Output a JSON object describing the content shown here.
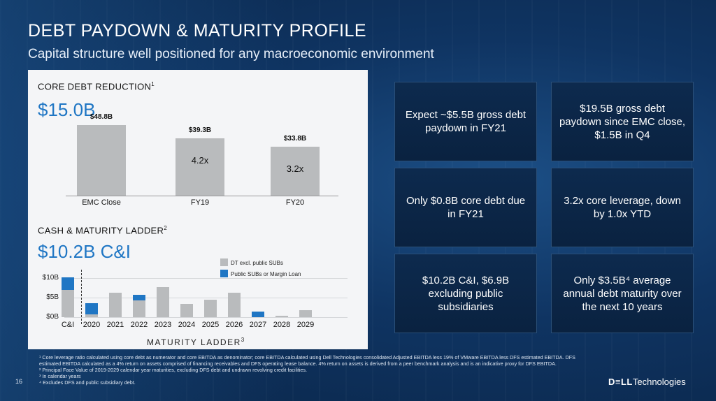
{
  "slide": {
    "title": "DEBT PAYDOWN & MATURITY PROFILE",
    "subtitle": "Capital structure well positioned for any macroeconomic environment",
    "page_number": "16",
    "logo": {
      "bold": "D≡LL",
      "rest": "Technologies"
    }
  },
  "core_debt": {
    "title": "CORE DEBT REDUCTION",
    "title_sup": "1",
    "headline": "$15.0B"
  },
  "ladder": {
    "title": "CASH & MATURITY LADDER",
    "title_sup": "2",
    "headline": "$10.2B C&I",
    "x_title": "MATURITY LADDER",
    "x_title_sup": "3"
  },
  "chart_data": [
    {
      "type": "bar",
      "categories": [
        "EMC Close",
        "FY19",
        "FY20"
      ],
      "values": [
        48.8,
        39.3,
        33.8
      ],
      "data_labels": [
        "$48.8B",
        "$39.3B",
        "$33.8B"
      ],
      "inner_labels": [
        "",
        "4.2x",
        "3.2x"
      ],
      "ylim": [
        0,
        55
      ],
      "colors": [
        "#b9bbbd"
      ]
    },
    {
      "type": "bar",
      "stacked": true,
      "categories": [
        "C&I",
        "2020",
        "2021",
        "2022",
        "2023",
        "2024",
        "2025",
        "2026",
        "2027",
        "2028",
        "2029"
      ],
      "yticks": [
        "$0B",
        "$5B",
        "$10B"
      ],
      "ylim": [
        0,
        10.5
      ],
      "series": [
        {
          "name": "DT excl. public SUBs",
          "color": "#b9bbbd",
          "values": [
            6.9,
            0.7,
            6.2,
            4.2,
            7.7,
            3.4,
            4.5,
            6.2,
            0.0,
            0.3,
            1.8
          ]
        },
        {
          "name": "Public SUBs or Margin Loan",
          "color": "#1f76c4",
          "values": [
            3.3,
            2.8,
            0.0,
            1.6,
            0.0,
            0.0,
            0.0,
            0.0,
            1.4,
            0.0,
            0.0
          ]
        }
      ],
      "legend_position": "top-right"
    }
  ],
  "boxes": [
    "Expect ~$5.5B gross debt paydown in FY21",
    "$19.5B gross debt paydown since EMC close, $1.5B in Q4",
    "Only $0.8B core debt due in FY21",
    "3.2x core leverage, down by 1.0x YTD",
    "$10.2B C&I, $6.9B excluding public subsidiaries",
    "Only $3.5B⁴ average annual debt maturity over the next 10 years"
  ],
  "footnotes": [
    "¹ Core leverage ratio calculated using core debt as numerator and core EBITDA as denominator; core EBITDA calculated using Dell Technologies consolidated Adjusted EBITDA less 19% of VMware EBITDA less DFS estimated EBITDA. DFS estimated EBITDA calculated as a 4% return on assets comprised of financing receivables and DFS operating lease balance. 4% return on assets is derived from a peer benchmark analysis and is an indicative proxy for DFS EBITDA.",
    "² Principal Face Value of 2019-2029 calendar year maturities, excluding DFS debt and undrawn revolving credit facilities.",
    "³ In calendar years",
    "⁴ Excludes DFS and public subsidiary debt."
  ]
}
